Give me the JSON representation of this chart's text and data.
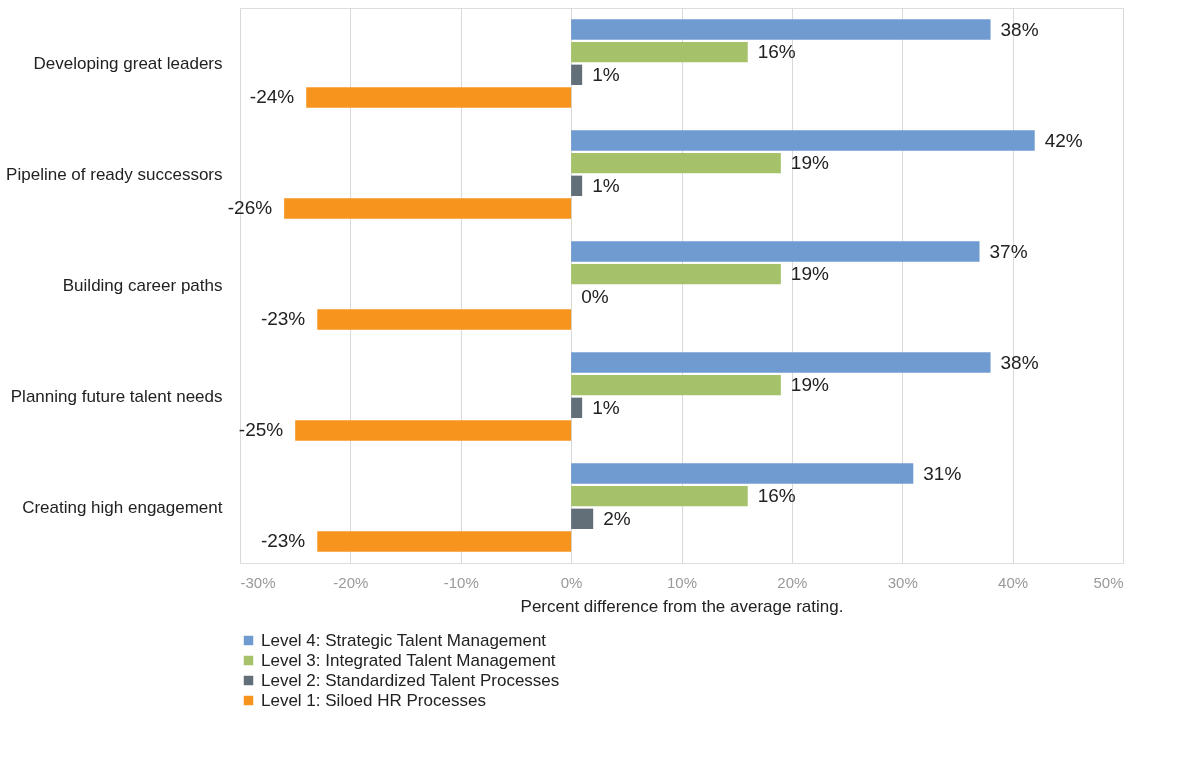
{
  "chart_data": {
    "type": "bar",
    "orientation": "horizontal",
    "xlabel": "Percent difference from the average rating.",
    "categories": [
      "Developing great leaders",
      "Pipeline of ready successors",
      "Building career paths",
      "Planning future talent needs",
      "Creating high engagement"
    ],
    "series": [
      {
        "name": "Level 4: Strategic Talent Management",
        "color": "#6f9bd1",
        "values": [
          38,
          42,
          37,
          38,
          31
        ],
        "value_labels": [
          "38%",
          "42%",
          "37%",
          "38%",
          "31%"
        ]
      },
      {
        "name": "Level 3: Integrated Talent Management",
        "color": "#a5c26a",
        "values": [
          16,
          19,
          19,
          19,
          16
        ],
        "value_labels": [
          "16%",
          "19%",
          "19%",
          "19%",
          "16%"
        ]
      },
      {
        "name": "Level 2: Standardized Talent Processes",
        "color": "#636f78",
        "values": [
          1,
          1,
          0,
          1,
          2
        ],
        "value_labels": [
          "1%",
          "1%",
          "0%",
          "1%",
          "2%"
        ]
      },
      {
        "name": "Level 1: Siloed HR Processes",
        "color": "#f7941d",
        "values": [
          -24,
          -26,
          -23,
          -25,
          -23
        ],
        "value_labels": [
          "-24%",
          "-26%",
          "-23%",
          "-25%",
          "-23%"
        ]
      }
    ],
    "xlim": [
      -30,
      50
    ],
    "xticks": [
      {
        "value": -30,
        "label": "-30%"
      },
      {
        "value": -20,
        "label": "-20%"
      },
      {
        "value": -10,
        "label": "-10%"
      },
      {
        "value": 0,
        "label": "0%"
      },
      {
        "value": 10,
        "label": "10%"
      },
      {
        "value": 20,
        "label": "20%"
      },
      {
        "value": 30,
        "label": "30%"
      },
      {
        "value": 40,
        "label": "40%"
      },
      {
        "value": 50,
        "label": "50%"
      }
    ],
    "grid": "x",
    "legend": "bottom"
  }
}
